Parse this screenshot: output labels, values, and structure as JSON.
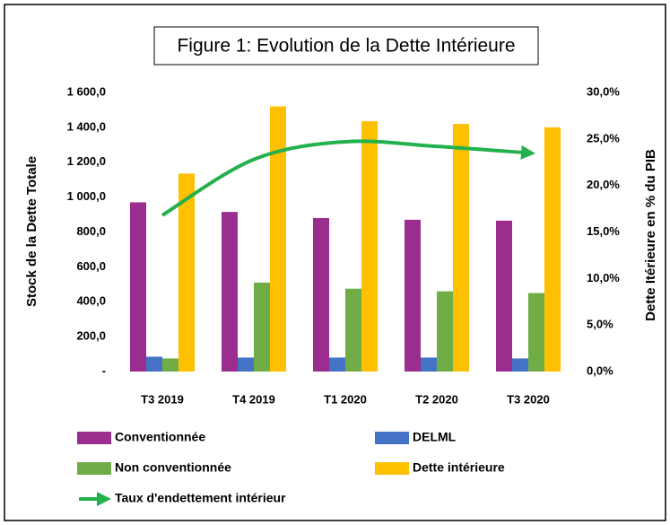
{
  "chart_data": {
    "type": "bar",
    "title": "Figure 1: Evolution de la Dette Intérieure",
    "ylabel": "Stock de la Dette Totale",
    "y2label": "Dette Itérieure en % du PIB",
    "categories": [
      "T3 2019",
      "T4 2019",
      "T1 2020",
      "T2 2020",
      "T3 2020"
    ],
    "series": [
      {
        "name": "Conventionnée",
        "color": "#9b2d8e",
        "values": [
          970,
          915,
          880,
          870,
          865
        ]
      },
      {
        "name": "DELML",
        "color": "#4472c4",
        "values": [
          85,
          80,
          80,
          80,
          75
        ]
      },
      {
        "name": "Non conventionnée",
        "color": "#70ad47",
        "values": [
          75,
          510,
          475,
          460,
          450
        ]
      },
      {
        "name": "Dette intérieure",
        "color": "#ffc000",
        "values": [
          1135,
          1520,
          1435,
          1420,
          1400
        ]
      },
      {
        "name": "Taux d'endettement intérieur",
        "color": "#22b14c",
        "type": "line",
        "axis": "y2",
        "values": [
          16.8,
          22.8,
          24.7,
          24.2,
          23.5
        ]
      }
    ],
    "ylim": [
      0,
      1600
    ],
    "yticks": [
      {
        "value": 0,
        "label": "-"
      },
      {
        "value": 200,
        "label": "200,0"
      },
      {
        "value": 400,
        "label": "400,0"
      },
      {
        "value": 600,
        "label": "600,0"
      },
      {
        "value": 800,
        "label": "800,0"
      },
      {
        "value": 1000,
        "label": "1 000,0"
      },
      {
        "value": 1200,
        "label": "1 200,0"
      },
      {
        "value": 1400,
        "label": "1 400,0"
      },
      {
        "value": 1600,
        "label": "1 600,0"
      }
    ],
    "y2lim": [
      0,
      30
    ],
    "y2ticks": [
      {
        "value": 0,
        "label": "0,0%"
      },
      {
        "value": 5,
        "label": "5,0%"
      },
      {
        "value": 10,
        "label": "10,0%"
      },
      {
        "value": 15,
        "label": "15,0%"
      },
      {
        "value": 20,
        "label": "20,0%"
      },
      {
        "value": 25,
        "label": "25,0%"
      },
      {
        "value": 30,
        "label": "30,0%"
      }
    ],
    "grid": false
  }
}
